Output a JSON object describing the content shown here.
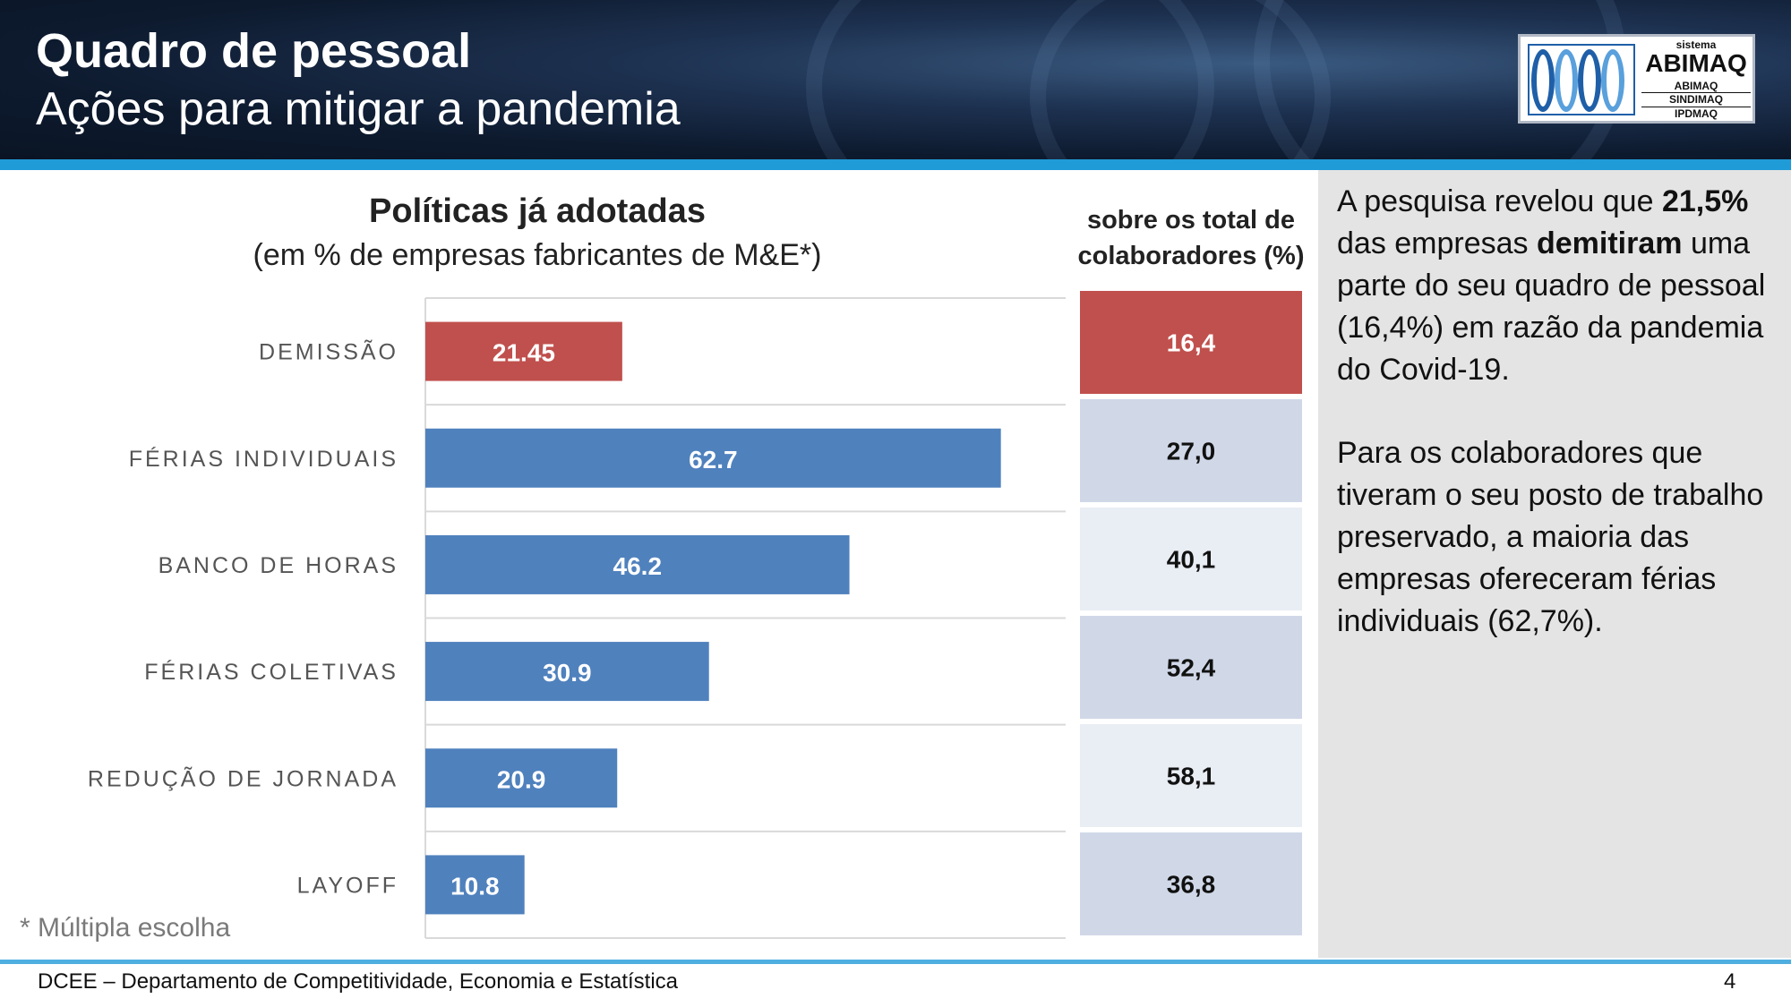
{
  "header": {
    "title": "Quadro de pessoal",
    "subtitle": "Ações para mitigar a pandemia"
  },
  "logo": {
    "line1": "sistema",
    "line2": "ABIMAQ",
    "line3": "ABIMAQ",
    "line4": "SINDIMAQ",
    "line5": "IPDMAQ"
  },
  "chart_data": {
    "type": "bar",
    "title": "Políticas já adotadas",
    "subtitle": "(em % de empresas fabricantes de M&E*)",
    "categories": [
      "DEMISSÃO",
      "FÉRIAS INDIVIDUAIS",
      "BANCO DE HORAS",
      "FÉRIAS COLETIVAS",
      "REDUÇÃO DE JORNADA",
      "LAYOFF"
    ],
    "values": [
      21.45,
      62.7,
      46.2,
      30.9,
      20.9,
      10.8
    ],
    "value_labels": [
      "21.45",
      "62.7",
      "46.2",
      "30.9",
      "20.9",
      "10.8"
    ],
    "orientation": "horizontal",
    "xlim": [
      0,
      70
    ],
    "bar_colors": [
      "#c0504d",
      "#4f81bd",
      "#4f81bd",
      "#4f81bd",
      "#4f81bd",
      "#4f81bd"
    ],
    "grid": true,
    "side_column": {
      "header": [
        "sobre os total de",
        "colaboradores (%)"
      ],
      "values": [
        "16,4",
        "27,0",
        "40,1",
        "52,4",
        "58,1",
        "36,8"
      ],
      "fill_colors": [
        "#c0504d",
        "#d0d8e8",
        "#e9edf4",
        "#d0d8e8",
        "#e9edf4",
        "#d0d8e8"
      ],
      "text_colors": [
        "#ffffff",
        "#111111",
        "#111111",
        "#111111",
        "#111111",
        "#111111"
      ]
    }
  },
  "side_text": {
    "p1_a": "A pesquisa revelou que ",
    "p1_b": "21,5%",
    "p1_c": " das empresas ",
    "p1_d": "demitiram",
    "p1_e": " uma parte do seu quadro de pessoal (16,4%)  em razão da pandemia do Covid-19.",
    "p2": "Para os colaboradores que tiveram o seu posto de trabalho preservado, a maioria das empresas ofereceram férias individuais (62,7%)."
  },
  "footnote": "* Múltipla escolha",
  "footer": {
    "department": "DCEE – Departamento de Competitividade, Economia e Estatística",
    "page": "4"
  },
  "colors": {
    "accent_bar": "#1f9bd7",
    "highlight": "#c0504d",
    "primary": "#4f81bd"
  }
}
